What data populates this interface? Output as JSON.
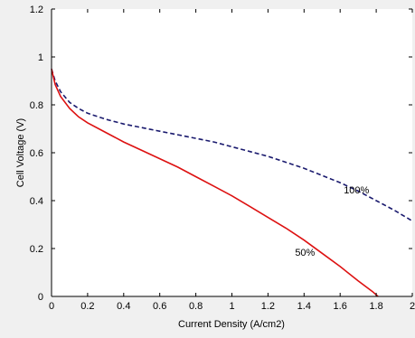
{
  "chart_data": {
    "type": "line",
    "title": "",
    "xlabel": "Current Density (A/cm2)",
    "ylabel": "Cell Voltage (V)",
    "xlim": [
      0,
      2
    ],
    "ylim": [
      0,
      1.2
    ],
    "x_ticks": [
      0,
      0.2,
      0.4,
      0.6,
      0.8,
      1,
      1.2,
      1.4,
      1.6,
      1.8,
      2
    ],
    "x_tick_labels": [
      "0",
      "0.2",
      "0.4",
      "0.6",
      "0.8",
      "1",
      "1.2",
      "1.4",
      "1.6",
      "1.8",
      "2"
    ],
    "y_ticks": [
      0,
      0.2,
      0.4,
      0.6,
      0.8,
      1,
      1.2
    ],
    "y_tick_labels": [
      "0",
      "0.2",
      "0.4",
      "0.6",
      "0.8",
      "1",
      "1.2"
    ],
    "grid": false,
    "legend": "none",
    "series": [
      {
        "name": "100%",
        "color": "#1a1a6e",
        "style": "dashed",
        "x": [
          0,
          0.02,
          0.05,
          0.1,
          0.15,
          0.2,
          0.3,
          0.4,
          0.5,
          0.6,
          0.7,
          0.8,
          0.9,
          1.0,
          1.1,
          1.2,
          1.3,
          1.4,
          1.5,
          1.6,
          1.7,
          1.8,
          1.9,
          2.0
        ],
        "y": [
          0.95,
          0.9,
          0.855,
          0.81,
          0.785,
          0.765,
          0.74,
          0.72,
          0.705,
          0.69,
          0.675,
          0.66,
          0.645,
          0.625,
          0.605,
          0.585,
          0.56,
          0.535,
          0.505,
          0.475,
          0.44,
          0.4,
          0.36,
          0.315
        ]
      },
      {
        "name": "50%",
        "color": "#dd1111",
        "style": "solid",
        "x": [
          0,
          0.02,
          0.05,
          0.1,
          0.15,
          0.2,
          0.3,
          0.4,
          0.5,
          0.6,
          0.7,
          0.8,
          0.9,
          1.0,
          1.1,
          1.2,
          1.3,
          1.4,
          1.5,
          1.6,
          1.7,
          1.78,
          1.81
        ],
        "y": [
          0.95,
          0.885,
          0.835,
          0.785,
          0.75,
          0.725,
          0.685,
          0.645,
          0.61,
          0.575,
          0.54,
          0.5,
          0.46,
          0.42,
          0.375,
          0.33,
          0.285,
          0.235,
          0.18,
          0.125,
          0.065,
          0.02,
          0
        ]
      }
    ],
    "annotations": [
      {
        "text": "100%",
        "x": 1.62,
        "y": 0.43
      },
      {
        "text": "50%",
        "x": 1.35,
        "y": 0.17
      }
    ]
  }
}
